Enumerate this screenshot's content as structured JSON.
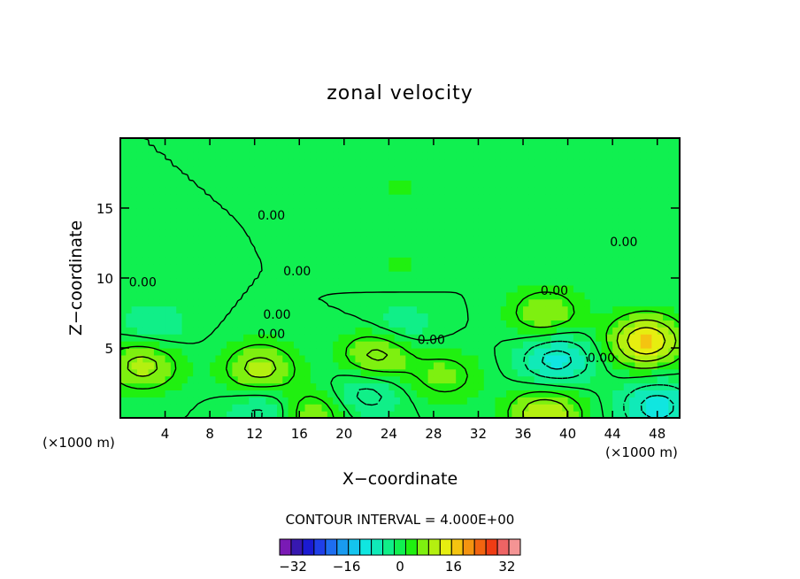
{
  "chart_data": {
    "type": "heatmap",
    "title": "zonal velocity",
    "xlabel": "X−coordinate",
    "ylabel": "Z−coordinate",
    "x_unit_left": "(×1000 m)",
    "x_unit_right": "(×1000 m)",
    "xlim": [
      0,
      50
    ],
    "ylim": [
      0,
      20
    ],
    "x_ticks": [
      4,
      8,
      12,
      16,
      20,
      24,
      28,
      32,
      36,
      40,
      44,
      48
    ],
    "y_ticks": [
      5,
      10,
      15
    ],
    "contour_interval_text": "CONTOUR INTERVAL = 4.000E+00",
    "contour_interval": 4,
    "contour_labels": [
      {
        "x": 13.5,
        "y": 14.5,
        "text": "0.00"
      },
      {
        "x": 45.0,
        "y": 12.6,
        "text": "0.00"
      },
      {
        "x": 2.0,
        "y": 9.7,
        "text": "0.00"
      },
      {
        "x": 15.8,
        "y": 10.5,
        "text": "0.00"
      },
      {
        "x": 38.8,
        "y": 9.1,
        "text": "0.00"
      },
      {
        "x": 14.0,
        "y": 7.4,
        "text": "0.00"
      },
      {
        "x": 13.5,
        "y": 6.0,
        "text": "0.00"
      },
      {
        "x": 27.8,
        "y": 5.6,
        "text": "0.00"
      },
      {
        "x": 43.0,
        "y": 4.3,
        "text": "0.00"
      }
    ],
    "features": [
      {
        "x": 25,
        "y": 16.5,
        "value": 2
      },
      {
        "x": 25,
        "y": 11.0,
        "value": 2
      },
      {
        "x": 2,
        "y": 3.8,
        "value": 10
      },
      {
        "x": 12.5,
        "y": 3.5,
        "value": 10
      },
      {
        "x": 23,
        "y": 4.5,
        "value": 10
      },
      {
        "x": 29,
        "y": 3.0,
        "value": 6
      },
      {
        "x": 38,
        "y": 7.5,
        "value": 8
      },
      {
        "x": 47,
        "y": 5.5,
        "value": 16
      },
      {
        "x": 39,
        "y": 4.2,
        "value": -10
      },
      {
        "x": 48,
        "y": 0.8,
        "value": -10
      },
      {
        "x": 25,
        "y": 6.5,
        "value": -4
      },
      {
        "x": 3,
        "y": 6.5,
        "value": -4
      },
      {
        "x": 22,
        "y": 1.8,
        "value": -6
      },
      {
        "x": 13,
        "y": 0.5,
        "value": -6
      },
      {
        "x": 38,
        "y": 0.3,
        "value": 12
      },
      {
        "x": 17,
        "y": 0.3,
        "value": 8
      }
    ],
    "colorbar": {
      "min": -36,
      "max": 36,
      "labels": [
        {
          "v": -32,
          "text": "−32"
        },
        {
          "v": -16,
          "text": "−16"
        },
        {
          "v": 0,
          "text": "0"
        },
        {
          "v": 16,
          "text": "16"
        },
        {
          "v": 32,
          "text": "32"
        }
      ],
      "colors": [
        "#7a1ab5",
        "#3718b0",
        "#1a1ad2",
        "#1f3fe8",
        "#1e6ef0",
        "#199bf0",
        "#14c4ee",
        "#10e6e0",
        "#10eab8",
        "#10ef88",
        "#10f050",
        "#20f010",
        "#7ef010",
        "#b4f010",
        "#e6ee10",
        "#f4c410",
        "#f49410",
        "#f26410",
        "#f03c14",
        "#ee6464",
        "#f49494"
      ]
    }
  }
}
